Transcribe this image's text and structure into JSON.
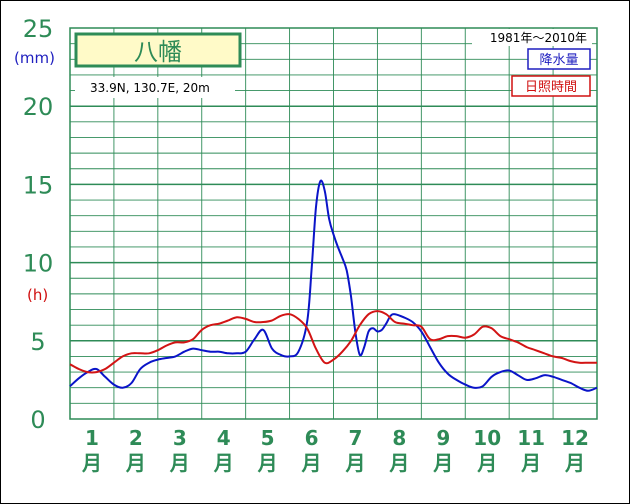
{
  "chart_data": {
    "type": "line",
    "title": "八幡",
    "subtitle": "33.9N,  130.7E,  20m",
    "period": "1981年〜2010年",
    "y_units": [
      "(mm)",
      "(h)"
    ],
    "y_ticks": [
      "0",
      "5",
      "10",
      "15",
      "20",
      "25"
    ],
    "ylim": [
      0,
      25
    ],
    "xlim": [
      0.5,
      12.5
    ],
    "grid": true,
    "legend_placement": "top-right",
    "month_labels": [
      "1",
      "2",
      "3",
      "4",
      "5",
      "6",
      "7",
      "8",
      "9",
      "10",
      "11",
      "12"
    ],
    "month_suffix": "月",
    "series": [
      {
        "name": "降水量",
        "color": "#0a14c8",
        "x": [
          0.5,
          0.7,
          0.9,
          1.1,
          1.3,
          1.5,
          1.7,
          1.9,
          2.1,
          2.3,
          2.5,
          2.7,
          2.9,
          3.1,
          3.3,
          3.5,
          3.7,
          3.9,
          4.1,
          4.3,
          4.5,
          4.7,
          4.9,
          5.1,
          5.3,
          5.5,
          5.7,
          5.9,
          6.0,
          6.1,
          6.2,
          6.3,
          6.4,
          6.5,
          6.6,
          6.7,
          6.8,
          6.9,
          7.0,
          7.1,
          7.2,
          7.3,
          7.4,
          7.5,
          7.6,
          7.7,
          7.8,
          7.9,
          8.1,
          8.3,
          8.5,
          8.7,
          8.9,
          9.1,
          9.3,
          9.5,
          9.7,
          9.9,
          10.1,
          10.3,
          10.5,
          10.7,
          10.9,
          11.1,
          11.3,
          11.5,
          11.7,
          11.9,
          12.1,
          12.3,
          12.5
        ],
        "values": [
          2.1,
          2.6,
          3.0,
          3.2,
          2.7,
          2.2,
          2.0,
          2.3,
          3.2,
          3.6,
          3.8,
          3.9,
          4.0,
          4.3,
          4.5,
          4.4,
          4.3,
          4.3,
          4.2,
          4.2,
          4.3,
          5.1,
          5.7,
          4.5,
          4.1,
          4.0,
          4.3,
          6.2,
          9.5,
          13.5,
          15.2,
          14.6,
          12.8,
          11.8,
          11.0,
          10.3,
          9.5,
          7.8,
          5.5,
          4.1,
          4.6,
          5.6,
          5.8,
          5.6,
          5.7,
          6.1,
          6.6,
          6.7,
          6.5,
          6.2,
          5.6,
          4.6,
          3.6,
          2.9,
          2.5,
          2.2,
          2.0,
          2.1,
          2.7,
          3.0,
          3.1,
          2.8,
          2.5,
          2.6,
          2.8,
          2.7,
          2.5,
          2.3,
          2.0,
          1.8,
          2.0
        ]
      },
      {
        "name": "日照時間",
        "color": "#d21414",
        "x": [
          0.5,
          0.7,
          0.9,
          1.1,
          1.3,
          1.5,
          1.7,
          1.9,
          2.1,
          2.3,
          2.5,
          2.7,
          2.9,
          3.1,
          3.3,
          3.5,
          3.7,
          3.9,
          4.1,
          4.3,
          4.5,
          4.7,
          4.9,
          5.1,
          5.3,
          5.5,
          5.7,
          5.9,
          6.1,
          6.3,
          6.5,
          6.7,
          6.9,
          7.1,
          7.3,
          7.5,
          7.7,
          7.9,
          8.1,
          8.3,
          8.5,
          8.7,
          8.9,
          9.1,
          9.3,
          9.5,
          9.7,
          9.9,
          10.1,
          10.3,
          10.5,
          10.7,
          10.9,
          11.1,
          11.3,
          11.5,
          11.7,
          11.9,
          12.1,
          12.3,
          12.5
        ],
        "values": [
          3.5,
          3.2,
          3.0,
          3.0,
          3.2,
          3.6,
          4.0,
          4.2,
          4.2,
          4.2,
          4.4,
          4.7,
          4.9,
          4.9,
          5.1,
          5.7,
          6.0,
          6.1,
          6.3,
          6.5,
          6.4,
          6.2,
          6.2,
          6.3,
          6.6,
          6.7,
          6.4,
          5.8,
          4.5,
          3.6,
          3.8,
          4.3,
          5.0,
          6.0,
          6.7,
          6.9,
          6.7,
          6.2,
          6.1,
          6.0,
          5.9,
          5.1,
          5.1,
          5.3,
          5.3,
          5.2,
          5.4,
          5.9,
          5.8,
          5.3,
          5.1,
          4.9,
          4.6,
          4.4,
          4.2,
          4.0,
          3.9,
          3.7,
          3.6,
          3.6,
          3.6
        ]
      }
    ]
  },
  "colors": {
    "grid": "#2e8b57",
    "station_box_fill": "#fffac8",
    "station_box_border": "#2e8b57"
  }
}
